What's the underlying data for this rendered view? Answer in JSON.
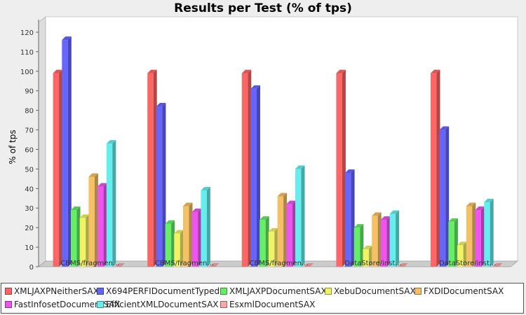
{
  "chart_data": {
    "type": "bar",
    "title": "Results per Test (% of tps)",
    "ylabel": "% of tps",
    "xlabel": "",
    "ylim": [
      0,
      125
    ],
    "yticks": [
      0,
      10,
      20,
      30,
      40,
      50,
      60,
      70,
      80,
      90,
      100,
      110,
      120
    ],
    "categories": [
      "CBMS/fragmen...",
      "CBMS/fragmen...",
      "CBMS/fragmen...",
      "DataStore/inst...",
      "DataStore/inst..."
    ],
    "series": [
      {
        "name": "XMLJAXPNeitherSAX",
        "color": "#ff6666",
        "values": [
          99,
          99,
          99,
          99,
          99
        ]
      },
      {
        "name": "X694PERFIDocumentTyped",
        "color": "#6666ff",
        "values": [
          116,
          82,
          91,
          48,
          70
        ]
      },
      {
        "name": "XMLJAXPDocumentSAX",
        "color": "#66ee66",
        "values": [
          29,
          22,
          24,
          20,
          23
        ]
      },
      {
        "name": "XebuDocumentSAX",
        "color": "#f2f266",
        "values": [
          25,
          17,
          18,
          9,
          11
        ]
      },
      {
        "name": "FXDIDocumentSAX",
        "color": "#f5c066",
        "values": [
          46,
          31,
          36,
          26,
          31
        ]
      },
      {
        "name": "FastInfosetDocumentSAX",
        "color": "#ee55ee",
        "values": [
          41,
          28,
          32,
          24,
          29
        ]
      },
      {
        "name": "EfficientXMLDocumentSAX",
        "color": "#66eeee",
        "values": [
          63,
          39,
          50,
          27,
          33
        ]
      },
      {
        "name": "EsxmlDocumentSAX",
        "color": "#f5a8a8",
        "values": [
          0,
          0,
          0,
          0,
          0
        ]
      }
    ],
    "grid": false,
    "legend_position": "bottom"
  }
}
